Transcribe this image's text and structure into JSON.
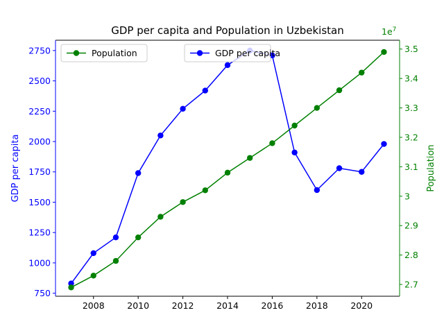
{
  "chart_data": {
    "type": "line",
    "title": "GDP per capita and Population in Uzbekistan",
    "xlabel": "",
    "x": [
      2007,
      2008,
      2009,
      2010,
      2011,
      2012,
      2013,
      2014,
      2015,
      2016,
      2017,
      2018,
      2019,
      2020,
      2021
    ],
    "xticks": [
      2008,
      2010,
      2012,
      2014,
      2016,
      2018,
      2020
    ],
    "xlim": [
      2006.3,
      2021.7
    ],
    "left_axis": {
      "label": "GDP per capita",
      "color": "#0000ff",
      "ylim": [
        725,
        2835
      ],
      "ticks": [
        750,
        1000,
        1250,
        1500,
        1750,
        2000,
        2250,
        2500,
        2750
      ]
    },
    "right_axis": {
      "label": "Population",
      "color": "#008000",
      "ylim": [
        26.6,
        35.3
      ],
      "ticks": [
        2.7,
        2.8,
        2.9,
        3.0,
        3.1,
        3.2,
        3.3,
        3.4,
        3.5
      ],
      "offset_text": "1e7"
    },
    "series": [
      {
        "name": "GDP per capita",
        "axis": "left",
        "color": "#0000ff",
        "values": [
          830,
          1080,
          1210,
          1740,
          2050,
          2270,
          2420,
          2630,
          2750,
          2710,
          1910,
          1600,
          1780,
          1750,
          1980
        ]
      },
      {
        "name": "Population",
        "axis": "right",
        "color": "#008000",
        "values": [
          26.9,
          27.3,
          27.8,
          28.6,
          29.3,
          29.8,
          30.2,
          30.8,
          31.3,
          31.8,
          32.4,
          33.0,
          33.6,
          34.2,
          34.9
        ]
      }
    ],
    "legends": [
      {
        "series": "Population",
        "location": "upper left"
      },
      {
        "series": "GDP per capita",
        "location": "upper center"
      }
    ]
  }
}
